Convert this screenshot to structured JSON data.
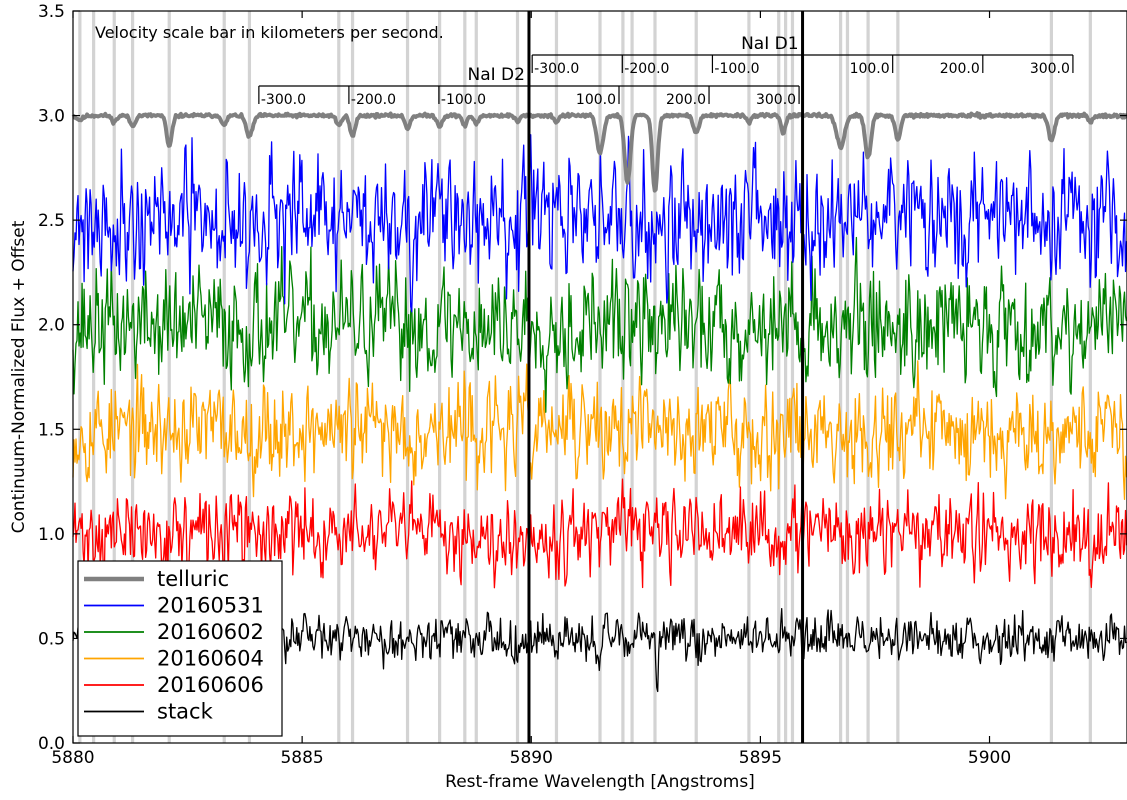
{
  "chart_data": {
    "type": "line",
    "xlabel": "Rest-frame Wavelength [Angstroms]",
    "ylabel": "Continuum-Normalized Flux + Offset",
    "xlim": [
      5880,
      5903
    ],
    "ylim": [
      0.0,
      3.5
    ],
    "grid": false,
    "x_ticks": [
      "5880",
      "5885",
      "5890",
      "5895",
      "5900"
    ],
    "x_tick_values": [
      5880,
      5885,
      5890,
      5895,
      5900
    ],
    "y_ticks": [
      "0.0",
      "0.5",
      "1.0",
      "1.5",
      "2.0",
      "2.5",
      "3.0",
      "3.5"
    ],
    "y_tick_values": [
      0.0,
      0.5,
      1.0,
      1.5,
      2.0,
      2.5,
      3.0,
      3.5
    ],
    "annotation": "Velocity scale bar in kilometers per second.",
    "legend_position": "lower-left",
    "reference_lines": [
      {
        "name": "NaI D2",
        "x": 5889.95
      },
      {
        "name": "NaI D1",
        "x": 5895.92
      }
    ],
    "velocity_bars": [
      {
        "line": "NaI D2",
        "label": "NaI D2",
        "labels": [
          "-300.0",
          "-200.0",
          "-100.0",
          "100.0",
          "200.0",
          "300.0"
        ],
        "velocities": [
          -300,
          -200,
          -100,
          100,
          200,
          300
        ]
      },
      {
        "line": "NaI D1",
        "label": "NaI D1",
        "labels": [
          "-300.0",
          "-200.0",
          "-100.0",
          "100.0",
          "200.0",
          "300.0"
        ],
        "velocities": [
          -300,
          -200,
          -100,
          100,
          200,
          300
        ]
      }
    ],
    "telluric_bands": [
      5880.15,
      5880.45,
      5880.9,
      5881.3,
      5882.1,
      5883.3,
      5883.85,
      5885.8,
      5886.1,
      5887.3,
      5888.0,
      5888.55,
      5888.8,
      5889.7,
      5890.55,
      5891.5,
      5892.0,
      5892.2,
      5892.7,
      5893.6,
      5894.75,
      5895.4,
      5895.55,
      5895.7,
      5896.75,
      5896.9,
      5897.35,
      5898.0,
      5901.35,
      5902.2
    ],
    "series": [
      {
        "name": "telluric",
        "color": "#808080",
        "linewidth": 4,
        "baseline": 3.0,
        "noise": 0.008,
        "seed": 11,
        "absorption": [
          [
            5880.15,
            0.02,
            0.1
          ],
          [
            5880.9,
            0.03,
            0.08
          ],
          [
            5881.3,
            0.05,
            0.08
          ],
          [
            5882.1,
            0.15,
            0.08
          ],
          [
            5883.3,
            0.05,
            0.07
          ],
          [
            5883.85,
            0.1,
            0.1
          ],
          [
            5885.8,
            0.05,
            0.07
          ],
          [
            5886.1,
            0.1,
            0.08
          ],
          [
            5887.3,
            0.06,
            0.08
          ],
          [
            5888.0,
            0.05,
            0.08
          ],
          [
            5888.55,
            0.05,
            0.07
          ],
          [
            5888.8,
            0.04,
            0.07
          ],
          [
            5889.7,
            0.03,
            0.07
          ],
          [
            5890.55,
            0.03,
            0.07
          ],
          [
            5891.5,
            0.18,
            0.1
          ],
          [
            5892.1,
            0.32,
            0.09
          ],
          [
            5892.7,
            0.37,
            0.08
          ],
          [
            5893.6,
            0.08,
            0.09
          ],
          [
            5894.75,
            0.03,
            0.07
          ],
          [
            5895.5,
            0.08,
            0.07
          ],
          [
            5896.75,
            0.15,
            0.12
          ],
          [
            5897.35,
            0.2,
            0.09
          ],
          [
            5898.0,
            0.12,
            0.08
          ],
          [
            5901.35,
            0.12,
            0.09
          ],
          [
            5902.2,
            0.03,
            0.07
          ]
        ]
      },
      {
        "name": "20160531",
        "color": "#0000ff",
        "linewidth": 1.3,
        "baseline": 2.5,
        "noise": 0.14,
        "seed": 21,
        "absorption": []
      },
      {
        "name": "20160602",
        "color": "#008000",
        "linewidth": 1.3,
        "baseline": 2.0,
        "noise": 0.13,
        "seed": 37,
        "absorption": []
      },
      {
        "name": "20160604",
        "color": "#ffa500",
        "linewidth": 1.3,
        "baseline": 1.5,
        "noise": 0.11,
        "seed": 53,
        "absorption": []
      },
      {
        "name": "20160606",
        "color": "#ff0000",
        "linewidth": 1.3,
        "baseline": 1.0,
        "noise": 0.09,
        "seed": 71,
        "absorption": []
      },
      {
        "name": "stack",
        "color": "#000000",
        "linewidth": 1.3,
        "baseline": 0.5,
        "noise": 0.05,
        "seed": 89,
        "absorption": [
          [
            5891.45,
            0.12,
            0.05
          ],
          [
            5892.1,
            0.1,
            0.05
          ],
          [
            5892.75,
            0.2,
            0.04
          ],
          [
            5897.35,
            0.06,
            0.05
          ]
        ]
      }
    ]
  }
}
